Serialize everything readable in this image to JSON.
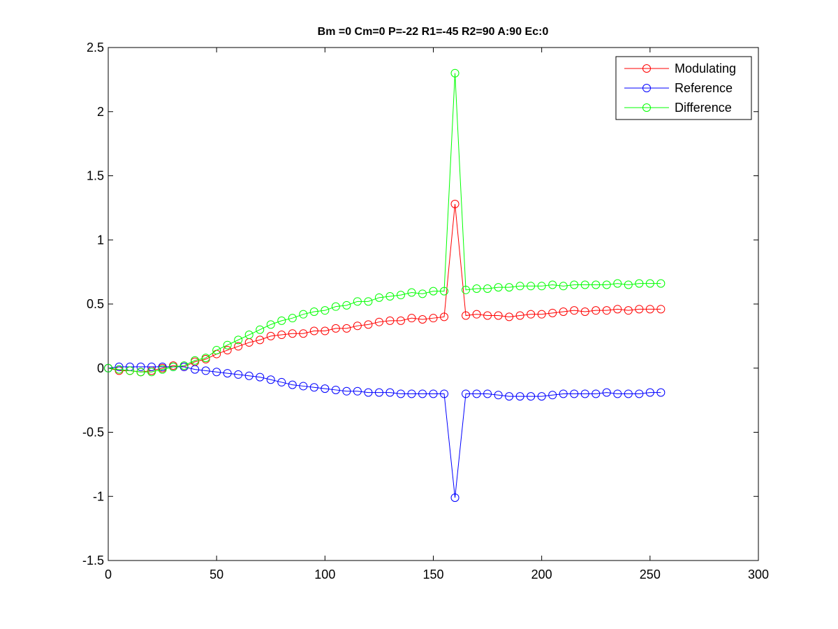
{
  "chart_data": {
    "type": "line",
    "title": "Bm =0  Cm=0  P=-22  R1=-45  R2=90  A:90  Ec:0",
    "xlabel": "",
    "ylabel": "",
    "xlim": [
      0,
      300
    ],
    "ylim": [
      -1.5,
      2.5
    ],
    "xticks": [
      0,
      50,
      100,
      150,
      200,
      250,
      300
    ],
    "yticks": [
      -1.5,
      -1,
      -0.5,
      0,
      0.5,
      1,
      1.5,
      2,
      2.5
    ],
    "xtick_labels": [
      "0",
      "50",
      "100",
      "150",
      "200",
      "250",
      "300"
    ],
    "ytick_labels": [
      "-1.5",
      "-1",
      "-0.5",
      "0",
      "0.5",
      "1",
      "1.5",
      "2",
      "2.5"
    ],
    "grid": false,
    "legend": "top-right",
    "marker": "circle",
    "x": [
      0,
      5,
      10,
      15,
      20,
      25,
      30,
      35,
      40,
      45,
      50,
      55,
      60,
      65,
      70,
      75,
      80,
      85,
      90,
      95,
      100,
      105,
      110,
      115,
      120,
      125,
      130,
      135,
      140,
      145,
      150,
      155,
      160,
      165,
      170,
      175,
      180,
      185,
      190,
      195,
      200,
      205,
      210,
      215,
      220,
      225,
      230,
      235,
      240,
      245,
      250,
      255
    ],
    "series": [
      {
        "name": "Modulating",
        "color": "#ff0000",
        "values": [
          0,
          -0.02,
          -0.02,
          -0.03,
          -0.02,
          0,
          0.02,
          0.01,
          0.05,
          0.07,
          0.11,
          0.14,
          0.17,
          0.2,
          0.22,
          0.25,
          0.26,
          0.27,
          0.27,
          0.29,
          0.29,
          0.31,
          0.31,
          0.33,
          0.34,
          0.36,
          0.37,
          0.37,
          0.39,
          0.38,
          0.39,
          0.4,
          1.28,
          0.41,
          0.42,
          0.41,
          0.41,
          0.4,
          0.41,
          0.42,
          0.42,
          0.43,
          0.44,
          0.45,
          0.44,
          0.45,
          0.45,
          0.46,
          0.45,
          0.46,
          0.46,
          0.46
        ]
      },
      {
        "name": "Reference",
        "color": "#0000ff",
        "values": [
          0,
          0.01,
          0.01,
          0.01,
          0.01,
          0.01,
          0.01,
          0.01,
          -0.01,
          -0.02,
          -0.03,
          -0.04,
          -0.05,
          -0.06,
          -0.07,
          -0.09,
          -0.11,
          -0.13,
          -0.14,
          -0.15,
          -0.16,
          -0.17,
          -0.18,
          -0.18,
          -0.19,
          -0.19,
          -0.19,
          -0.2,
          -0.2,
          -0.2,
          -0.2,
          -0.2,
          -1.01,
          -0.2,
          -0.2,
          -0.2,
          -0.21,
          -0.22,
          -0.22,
          -0.22,
          -0.22,
          -0.21,
          -0.2,
          -0.2,
          -0.2,
          -0.2,
          -0.19,
          -0.2,
          -0.2,
          -0.2,
          -0.19,
          -0.19
        ]
      },
      {
        "name": "Difference",
        "color": "#00ff00",
        "values": [
          0,
          -0.01,
          -0.02,
          -0.03,
          -0.03,
          -0.01,
          0.01,
          0.02,
          0.06,
          0.08,
          0.14,
          0.18,
          0.22,
          0.26,
          0.3,
          0.34,
          0.37,
          0.39,
          0.42,
          0.44,
          0.45,
          0.48,
          0.49,
          0.52,
          0.52,
          0.55,
          0.56,
          0.57,
          0.59,
          0.58,
          0.6,
          0.6,
          2.3,
          0.61,
          0.62,
          0.62,
          0.63,
          0.63,
          0.64,
          0.64,
          0.64,
          0.65,
          0.64,
          0.65,
          0.65,
          0.65,
          0.65,
          0.66,
          0.65,
          0.66,
          0.66,
          0.66
        ]
      }
    ]
  }
}
